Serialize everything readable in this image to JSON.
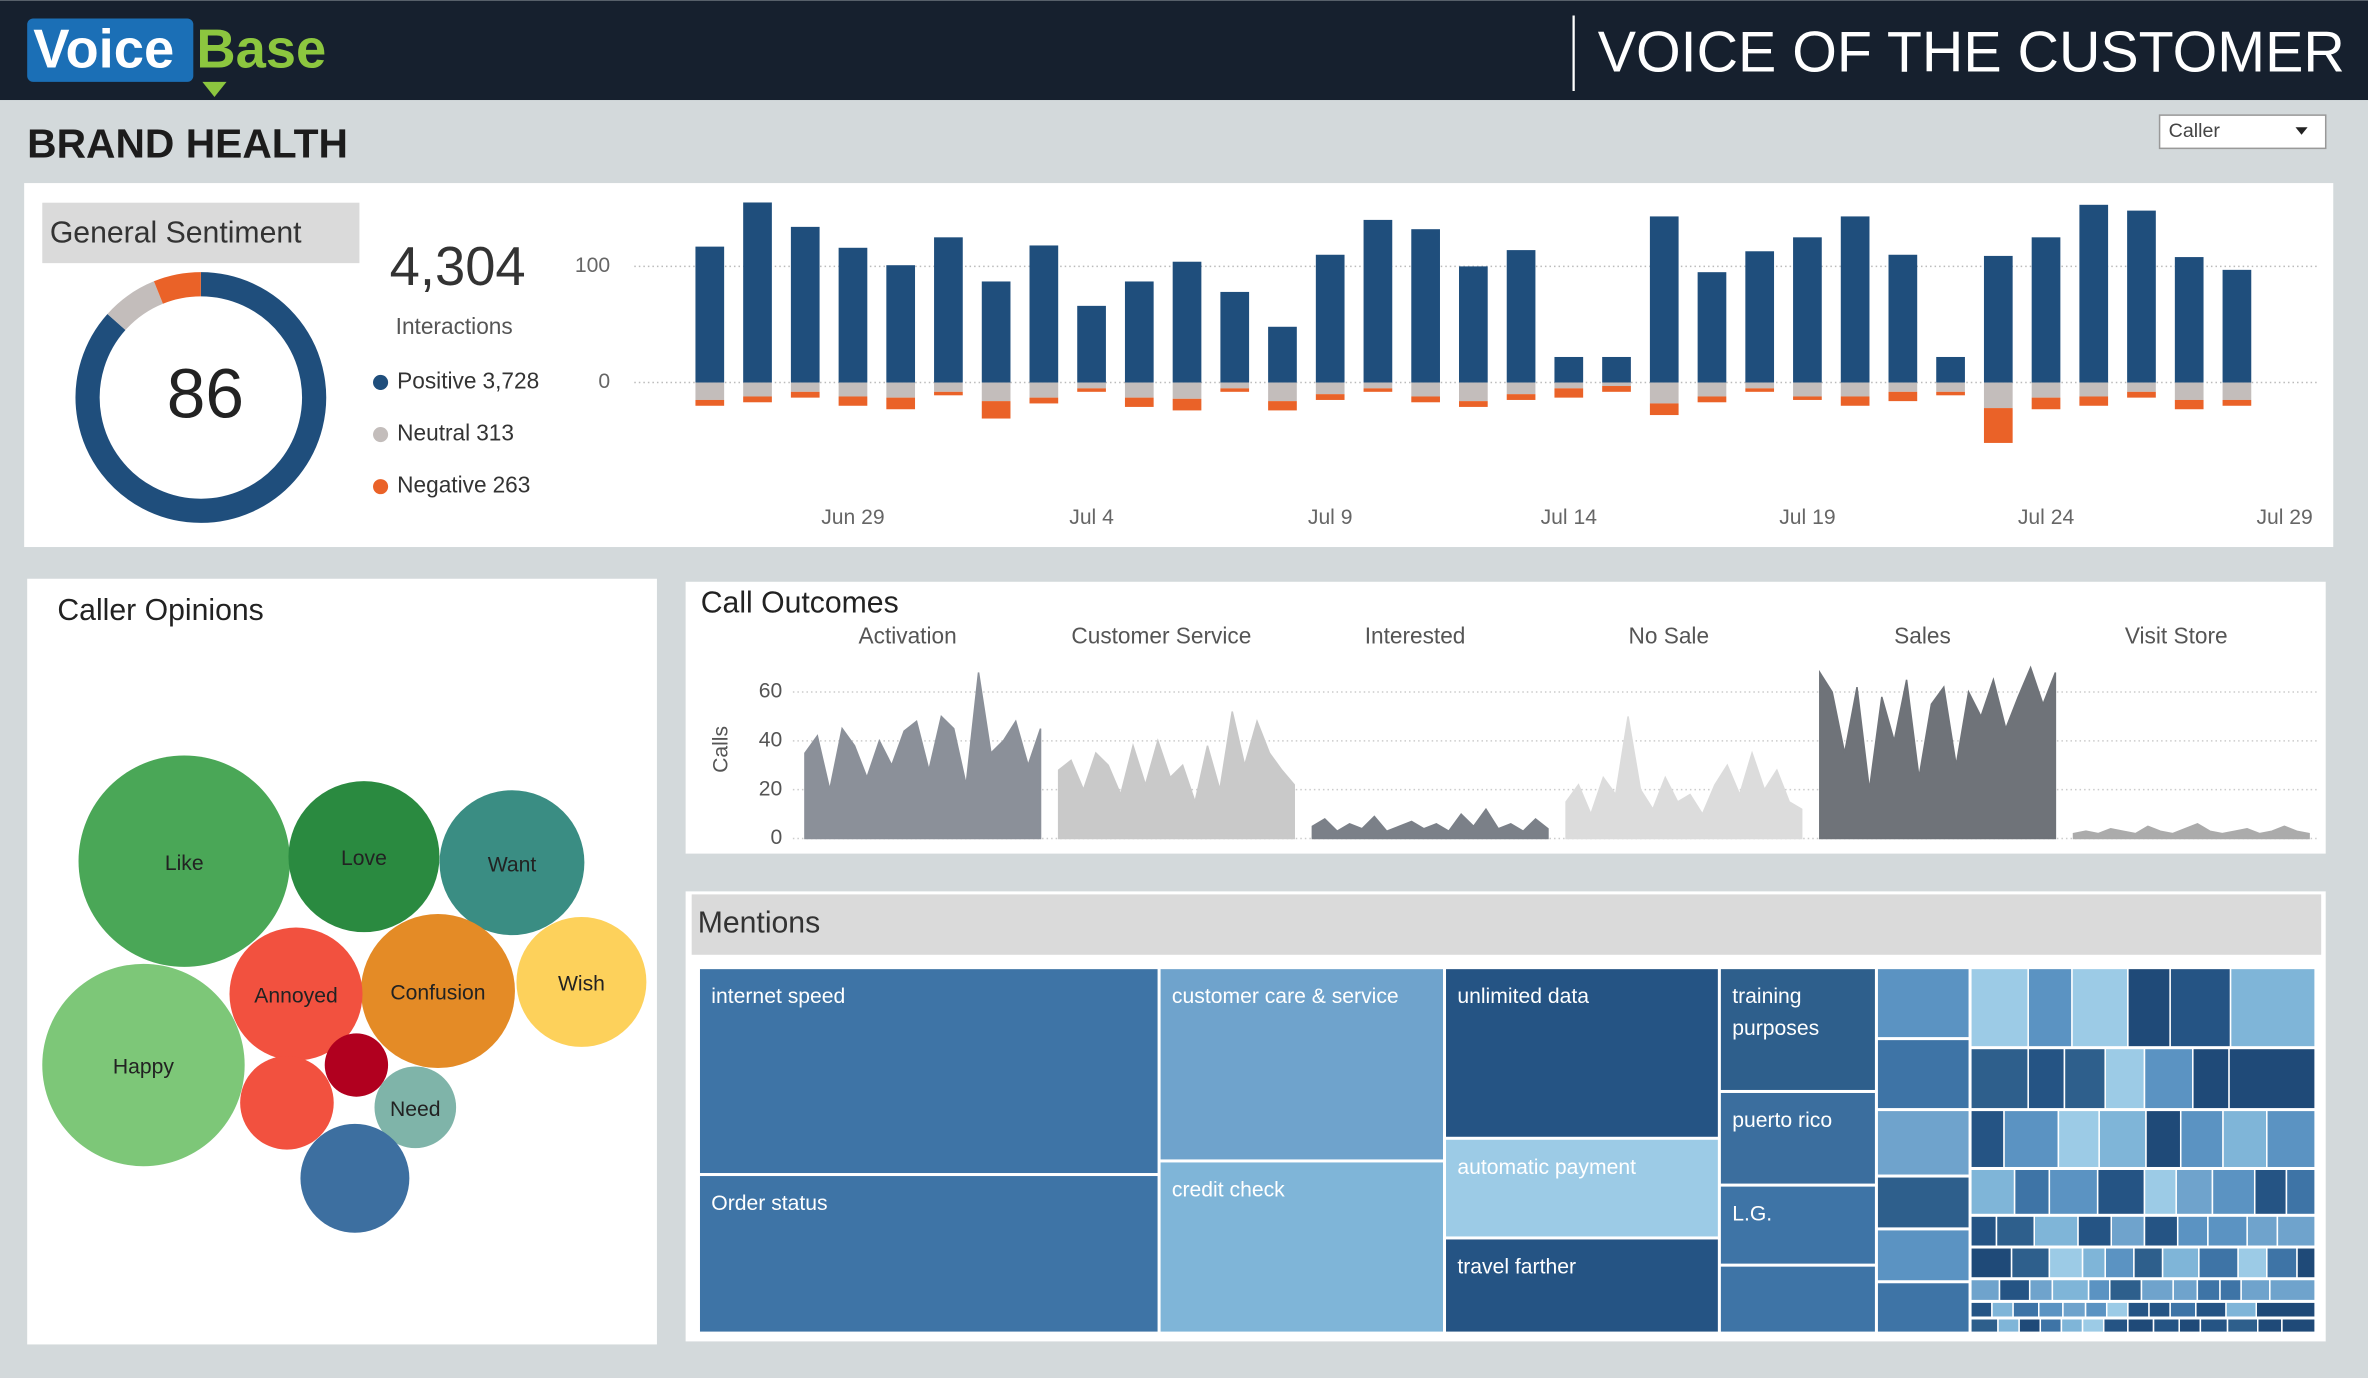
{
  "header": {
    "logo": [
      "Voice",
      "Base"
    ],
    "title": "VOICE OF THE CUSTOMER"
  },
  "page_title": "BRAND HEALTH",
  "filter": {
    "label": "Caller"
  },
  "sentiment": {
    "title": "General Sentiment",
    "score": 86,
    "total": {
      "value": 4304,
      "label": "4,304"
    },
    "total_label": "Interactions",
    "segments": [
      {
        "name": "Positive",
        "value": 3728,
        "label": "3,728",
        "color": "#1f4e7c"
      },
      {
        "name": "Neutral",
        "value": 313,
        "label": "313",
        "color": "#c3bdbb"
      },
      {
        "name": "Negative",
        "value": 263,
        "label": "263",
        "color": "#ea6228"
      }
    ]
  },
  "chart_data": [
    {
      "type": "bar",
      "stacked": true,
      "categories": [
        null,
        null,
        null,
        "Jun 29",
        null,
        null,
        null,
        null,
        "Jul 4",
        null,
        null,
        null,
        null,
        "Jul 9",
        null,
        null,
        null,
        null,
        "Jul 14",
        null,
        null,
        null,
        null,
        "Jul 19",
        null,
        null,
        null,
        null,
        "Jul 24",
        null,
        null,
        null,
        null,
        "Jul 29"
      ],
      "ylim": [
        -80,
        160
      ],
      "yticks": [
        0,
        100
      ],
      "grid": true,
      "series": [
        {
          "color": "#1f4e7c",
          "values": [
            117,
            155,
            134,
            116,
            101,
            125,
            87,
            118,
            66,
            87,
            104,
            78,
            48,
            110,
            140,
            132,
            100,
            114,
            22,
            22,
            143,
            95,
            113,
            125,
            143,
            110,
            22,
            109,
            125,
            153,
            148,
            108,
            97,
            null
          ]
        },
        {
          "color": "#c3bdbb",
          "values": [
            -15,
            -12,
            -8,
            -12,
            -13,
            -8,
            -16,
            -13,
            -5,
            -13,
            -14,
            -5,
            -16,
            -10,
            -5,
            -12,
            -16,
            -10,
            -5,
            -3,
            -18,
            -12,
            -5,
            -12,
            -12,
            -8,
            -8,
            -22,
            -13,
            -12,
            -8,
            -15,
            -15,
            null
          ]
        },
        {
          "color": "#ea6228",
          "values": [
            -5,
            -5,
            -5,
            -8,
            -10,
            -3,
            -15,
            -5,
            -3,
            -8,
            -10,
            -3,
            -8,
            -5,
            -3,
            -5,
            -5,
            -5,
            -8,
            -5,
            -10,
            -5,
            -3,
            -3,
            -8,
            -8,
            -3,
            -30,
            -10,
            -8,
            -5,
            -8,
            -5,
            null
          ]
        }
      ]
    },
    {
      "type": "area",
      "title": "Call Outcomes",
      "ylabel": "Calls",
      "ylim": [
        0,
        72
      ],
      "yticks": [
        0,
        20,
        40,
        60
      ],
      "grid": true,
      "series": [
        {
          "name": "Activation",
          "color": "#8b9099",
          "values": [
            35,
            42,
            20,
            45,
            38,
            25,
            40,
            30,
            44,
            48,
            28,
            50,
            45,
            22,
            68,
            35,
            40,
            48,
            30,
            45
          ]
        },
        {
          "name": "Customer Service",
          "color": "#c9c9c9",
          "values": [
            28,
            32,
            20,
            35,
            30,
            18,
            38,
            22,
            40,
            25,
            30,
            15,
            38,
            20,
            52,
            30,
            48,
            35,
            28,
            22
          ]
        },
        {
          "name": "Interested",
          "color": "#7b8088",
          "values": [
            5,
            8,
            3,
            6,
            4,
            9,
            3,
            5,
            7,
            4,
            6,
            3,
            10,
            5,
            12,
            4,
            6,
            3,
            8,
            4
          ]
        },
        {
          "name": "No Sale",
          "color": "#dcdcdc",
          "values": [
            15,
            22,
            10,
            25,
            18,
            50,
            20,
            12,
            25,
            15,
            18,
            10,
            22,
            30,
            18,
            35,
            20,
            28,
            15,
            12
          ]
        },
        {
          "name": "Sales",
          "color": "#6f7379",
          "values": [
            68,
            60,
            35,
            62,
            20,
            58,
            40,
            65,
            25,
            55,
            62,
            30,
            60,
            50,
            65,
            45,
            58,
            70,
            55,
            68
          ]
        },
        {
          "name": "Visit Store",
          "color": "#ababab",
          "values": [
            2,
            3,
            2,
            4,
            3,
            2,
            5,
            3,
            2,
            4,
            6,
            3,
            2,
            3,
            4,
            2,
            3,
            5,
            3,
            2
          ]
        }
      ]
    }
  ],
  "opinions": {
    "title": "Caller Opinions",
    "bubbles": [
      {
        "label": "Like",
        "value": 490,
        "color": "#4aa757"
      },
      {
        "label": "Happy",
        "value": 449,
        "color": "#7dc778"
      },
      {
        "label": "Love",
        "value": 250,
        "color": "#2a8a40"
      },
      {
        "label": "Want",
        "value": 230,
        "color": "#3a8d83"
      },
      {
        "label": "Confusion",
        "value": 260,
        "color": "#e48b26"
      },
      {
        "label": "Wish",
        "value": 185,
        "color": "#fdd15b"
      },
      {
        "label": "Annoyed",
        "value": 194,
        "color": "#f2513f"
      },
      {
        "label": null,
        "value": 96,
        "color": "#f2513f"
      },
      {
        "label": null,
        "value": 44,
        "color": "#b1001f"
      },
      {
        "label": "Need",
        "value": 73,
        "color": "#7fb4a9"
      },
      {
        "label": null,
        "value": 130,
        "color": "#3d6fa0"
      }
    ]
  },
  "mentions": {
    "title": "Mentions",
    "items": [
      {
        "label": "internet speed",
        "color": "#3e74a6"
      },
      {
        "label": "Order status",
        "color": "#3e74a6"
      },
      {
        "label": "customer care & service",
        "color": "#6fa3cc"
      },
      {
        "label": "credit check",
        "color": "#7fb5d8"
      },
      {
        "label": "unlimited data",
        "color": "#255484"
      },
      {
        "label": "automatic payment",
        "color": "#9ccbe6"
      },
      {
        "label": "travel farther",
        "color": "#255484"
      },
      {
        "label": "training purposes",
        "color": "#2e5f8c"
      },
      {
        "label": "puerto rico",
        "color": "#3b6e9e"
      },
      {
        "label": "L.G.",
        "color": "#3e74a6"
      }
    ]
  }
}
